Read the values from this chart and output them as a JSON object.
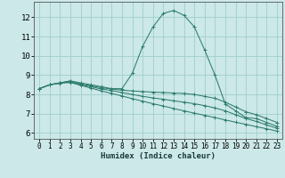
{
  "title": "",
  "xlabel": "Humidex (Indice chaleur)",
  "ylabel": "",
  "bg_color": "#cce8e8",
  "grid_color": "#9fcece",
  "line_color": "#2e7d6e",
  "xlim": [
    -0.5,
    23.5
  ],
  "ylim": [
    5.7,
    12.8
  ],
  "yticks": [
    6,
    7,
    8,
    9,
    10,
    11,
    12
  ],
  "xticks": [
    0,
    1,
    2,
    3,
    4,
    5,
    6,
    7,
    8,
    9,
    10,
    11,
    12,
    13,
    14,
    15,
    16,
    17,
    18,
    19,
    20,
    21,
    22,
    23
  ],
  "lines": [
    {
      "x": [
        0,
        1,
        2,
        3,
        4,
        5,
        6,
        7,
        8,
        9,
        10,
        11,
        12,
        13,
        14,
        15,
        16,
        17,
        18,
        19,
        20,
        21,
        22,
        23
      ],
      "y": [
        8.3,
        8.5,
        8.6,
        8.7,
        8.6,
        8.5,
        8.4,
        8.3,
        8.3,
        9.1,
        10.5,
        11.5,
        12.2,
        12.35,
        12.1,
        11.5,
        10.3,
        9.0,
        7.5,
        7.15,
        6.8,
        6.75,
        6.55,
        6.35
      ],
      "marker": "+"
    },
    {
      "x": [
        0,
        1,
        2,
        3,
        4,
        5,
        6,
        7,
        8,
        9,
        10,
        11,
        12,
        13,
        14,
        15,
        16,
        17,
        18,
        19,
        20,
        21,
        22,
        23
      ],
      "y": [
        8.3,
        8.5,
        8.6,
        8.7,
        8.55,
        8.45,
        8.35,
        8.28,
        8.22,
        8.18,
        8.15,
        8.12,
        8.1,
        8.07,
        8.05,
        8.0,
        7.9,
        7.8,
        7.6,
        7.35,
        7.1,
        6.95,
        6.75,
        6.55
      ],
      "marker": "+"
    },
    {
      "x": [
        0,
        1,
        2,
        3,
        4,
        5,
        6,
        7,
        8,
        9,
        10,
        11,
        12,
        13,
        14,
        15,
        16,
        17,
        18,
        19,
        20,
        21,
        22,
        23
      ],
      "y": [
        8.3,
        8.5,
        8.6,
        8.65,
        8.5,
        8.4,
        8.28,
        8.2,
        8.1,
        8.0,
        7.9,
        7.82,
        7.75,
        7.67,
        7.6,
        7.52,
        7.42,
        7.3,
        7.15,
        6.95,
        6.75,
        6.6,
        6.42,
        6.25
      ],
      "marker": "+"
    },
    {
      "x": [
        0,
        1,
        2,
        3,
        4,
        5,
        6,
        7,
        8,
        9,
        10,
        11,
        12,
        13,
        14,
        15,
        16,
        17,
        18,
        19,
        20,
        21,
        22,
        23
      ],
      "y": [
        8.3,
        8.5,
        8.58,
        8.62,
        8.47,
        8.33,
        8.18,
        8.05,
        7.92,
        7.78,
        7.65,
        7.52,
        7.4,
        7.27,
        7.15,
        7.03,
        6.92,
        6.8,
        6.68,
        6.56,
        6.45,
        6.33,
        6.22,
        6.1
      ],
      "marker": "+"
    }
  ]
}
